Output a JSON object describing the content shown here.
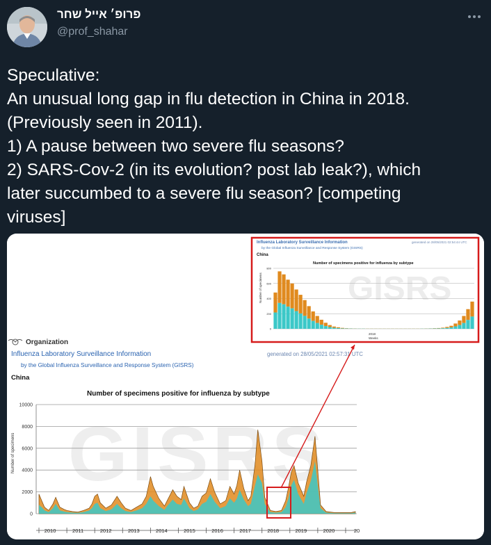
{
  "author": {
    "display_name": "פרופ׳ אייל שחר",
    "handle": "@prof_shahar"
  },
  "tweet": {
    "lines": [
      "Speculative:",
      "An unusual long gap in flu detection in China in 2018.",
      "(Previously seen in 2011).",
      "1) A pause between two severe flu seasons?",
      "2) SARS-Cov-2 (in its evolution? post lab leak?), which",
      "later succumbed to a severe flu season? [competing",
      "viruses]"
    ]
  },
  "icons": {
    "more": "more-horizontal-icon",
    "verified": "none"
  },
  "colors": {
    "background": "#15202b",
    "text": "#ffffff",
    "secondary_text": "#8b98a5",
    "highlight_box": "#d61b1b",
    "series_a": "#e08a1e",
    "series_b": "#3cc8c8"
  },
  "chart_image": {
    "org_label": "Organization",
    "heading": "Influenza Laboratory Surveillance Information",
    "subheading": "by the Global Influenza Surveillance and Response System (GISRS)",
    "generated": "generated on 28/05/2021 02:57:31 UTC",
    "country": "China",
    "watermark": "GISRS",
    "inset": {
      "heading": "Influenza Laboratory Surveillance Information",
      "subheading": "by the Global Influenza Surveillance and Response System (GISRS)",
      "generated": "generated on 28/05/2021 02:54:44 UTC",
      "country": "China",
      "title": "Number of specimens positive for influenza by subtype",
      "ylabel": "Number of specimens",
      "xlabel": "Weeks",
      "year": "2018",
      "y_ticks": [
        "800",
        "600",
        "400",
        "200",
        "0"
      ]
    }
  },
  "chart_data": {
    "type": "area",
    "title": "Number of specimens positive for influenza by subtype",
    "ylabel": "Number of specimens",
    "xlabel": "",
    "ylim": [
      0,
      10000
    ],
    "y_ticks": [
      "10000",
      "8000",
      "6000",
      "4000",
      "2000",
      "0"
    ],
    "x_tick_labels": [
      "2010",
      "2011",
      "2012",
      "2013",
      "2014",
      "2015",
      "2016",
      "2017",
      "2018",
      "2019",
      "2020",
      "20"
    ],
    "grid": true,
    "x": [
      2010.0,
      2010.1,
      2010.2,
      2010.35,
      2010.5,
      2010.6,
      2010.75,
      2010.9,
      2011.0,
      2011.2,
      2011.4,
      2011.6,
      2011.8,
      2011.9,
      2012.0,
      2012.1,
      2012.2,
      2012.4,
      2012.6,
      2012.8,
      2012.95,
      2013.1,
      2013.3,
      2013.5,
      2013.7,
      2013.85,
      2014.0,
      2014.1,
      2014.3,
      2014.5,
      2014.6,
      2014.8,
      2014.95,
      2015.1,
      2015.2,
      2015.4,
      2015.55,
      2015.7,
      2015.85,
      2016.0,
      2016.15,
      2016.3,
      2016.5,
      2016.7,
      2016.85,
      2017.0,
      2017.1,
      2017.2,
      2017.35,
      2017.5,
      2017.6,
      2017.75,
      2017.85,
      2018.0,
      2018.1,
      2018.3,
      2018.5,
      2018.7,
      2018.85,
      2018.95,
      2019.05,
      2019.15,
      2019.3,
      2019.5,
      2019.6,
      2019.75,
      2019.9,
      2020.0,
      2020.1,
      2020.3,
      2020.6,
      2020.9,
      2021.2,
      2021.35
    ],
    "series": [
      {
        "values": [
          1800,
          1200,
          600,
          300,
          900,
          1500,
          600,
          400,
          300,
          200,
          150,
          300,
          500,
          900,
          1600,
          1800,
          1000,
          500,
          800,
          1600,
          1000,
          500,
          300,
          600,
          900,
          1600,
          3400,
          2500,
          1400,
          700,
          1200,
          2200,
          1600,
          1300,
          2500,
          1000,
          500,
          700,
          1600,
          1900,
          3200,
          2000,
          900,
          1200,
          2500,
          1800,
          2600,
          4000,
          2300,
          1200,
          1600,
          4500,
          7700,
          4800,
          1500,
          300,
          200,
          300,
          1200,
          2400,
          3800,
          4400,
          2800,
          1600,
          2900,
          4400,
          7100,
          4000,
          800,
          200,
          100,
          100,
          100,
          200
        ]
      },
      {
        "values": [
          800,
          600,
          300,
          150,
          500,
          900,
          300,
          200,
          150,
          100,
          80,
          150,
          300,
          500,
          900,
          1000,
          500,
          250,
          400,
          900,
          500,
          250,
          150,
          300,
          500,
          900,
          1600,
          1200,
          700,
          350,
          700,
          1300,
          900,
          800,
          1400,
          500,
          250,
          400,
          900,
          1100,
          1800,
          1100,
          500,
          700,
          1400,
          1000,
          1400,
          2200,
          1300,
          700,
          900,
          2600,
          3600,
          2800,
          900,
          150,
          100,
          150,
          600,
          1400,
          2600,
          3100,
          1800,
          900,
          1900,
          3000,
          4800,
          2600,
          500,
          100,
          50,
          50,
          50,
          100
        ]
      }
    ]
  }
}
